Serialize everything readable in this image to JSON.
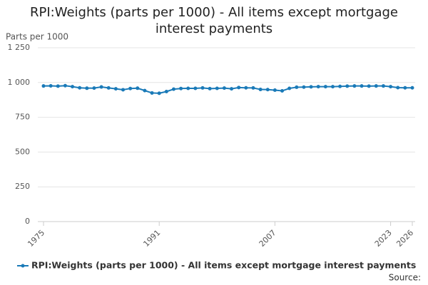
{
  "chart_data": {
    "type": "line",
    "title": "RPI:Weights (parts per 1000) - All items except mortgage interest payments",
    "y_label": "Parts per 1000",
    "source": "Source:",
    "x": [
      1975,
      1976,
      1977,
      1978,
      1979,
      1980,
      1981,
      1982,
      1983,
      1984,
      1985,
      1986,
      1987,
      1988,
      1989,
      1990,
      1991,
      1992,
      1993,
      1994,
      1995,
      1996,
      1997,
      1998,
      1999,
      2000,
      2001,
      2002,
      2003,
      2004,
      2005,
      2006,
      2007,
      2008,
      2009,
      2010,
      2011,
      2012,
      2013,
      2014,
      2015,
      2016,
      2017,
      2018,
      2019,
      2020,
      2021,
      2022,
      2023,
      2024,
      2025,
      2026
    ],
    "series": [
      {
        "name": "RPI:Weights (parts per 1000) - All items except mortgage interest payments",
        "color": "#1a7ab8",
        "values": [
          975,
          976,
          974,
          977,
          970,
          962,
          959,
          960,
          968,
          961,
          955,
          948,
          957,
          959,
          942,
          925,
          923,
          935,
          952,
          957,
          958,
          958,
          961,
          956,
          958,
          960,
          955,
          964,
          962,
          961,
          950,
          949,
          945,
          940,
          958,
          966,
          967,
          969,
          970,
          970,
          970,
          972,
          974,
          975,
          975,
          974,
          975,
          975,
          970,
          963,
          962,
          962
        ]
      }
    ],
    "xlim": [
      1975,
      2026
    ],
    "xticks": [
      1975,
      1991,
      2007,
      2023,
      2026
    ],
    "ylim": [
      0,
      1250
    ],
    "yticks": [
      0,
      250,
      500,
      750,
      {
        "value": 1000,
        "label": "1 000"
      },
      {
        "value": 1250,
        "label": "1 250"
      }
    ],
    "grid": true,
    "legend": "bottom"
  }
}
